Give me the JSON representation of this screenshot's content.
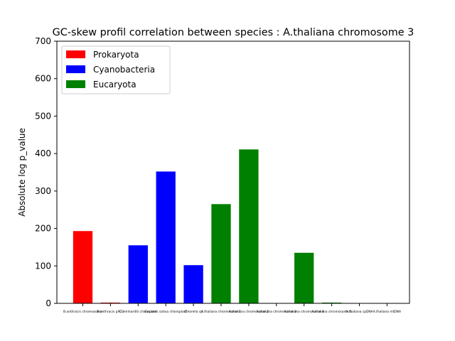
{
  "chart_data": {
    "type": "bar",
    "title": "GC-skew profil correlation between species : A.thaliana chromosome 3",
    "xlabel": "",
    "ylabel": "Absolute log p_value",
    "ylim": [
      0,
      700
    ],
    "yticks": [
      0,
      100,
      200,
      300,
      400,
      500,
      600,
      700
    ],
    "grid": false,
    "legend_position": "top-left",
    "legend": [
      {
        "label": "Prokaryota",
        "color": "#ff0000"
      },
      {
        "label": "Cyanobacteria",
        "color": "#0000ff"
      },
      {
        "label": "Eucaryota",
        "color": "#008000"
      }
    ],
    "categories": [
      "B.anthracis chromosome",
      "B.anthracis pXO1",
      "C.reinhardtii chloroplast",
      "Cucumis sativa chloroplast",
      "Chlorella cp",
      "A.thaliana chromosome 1",
      "A.thaliana chromosome 2",
      "A.thaliana chromosome 3",
      "A.thaliana chromosome 4",
      "A.thaliana chromosome 5",
      "A.thaliana cpDNA",
      "A.thaliana mtDNA"
    ],
    "values": [
      193,
      2,
      155,
      352,
      102,
      265,
      411,
      0,
      135,
      2,
      0,
      0
    ],
    "groups": [
      "Prokaryota",
      "Prokaryota",
      "Cyanobacteria",
      "Cyanobacteria",
      "Cyanobacteria",
      "Eucaryota",
      "Eucaryota",
      "Eucaryota",
      "Eucaryota",
      "Eucaryota",
      "Eucaryota",
      "Eucaryota"
    ]
  }
}
